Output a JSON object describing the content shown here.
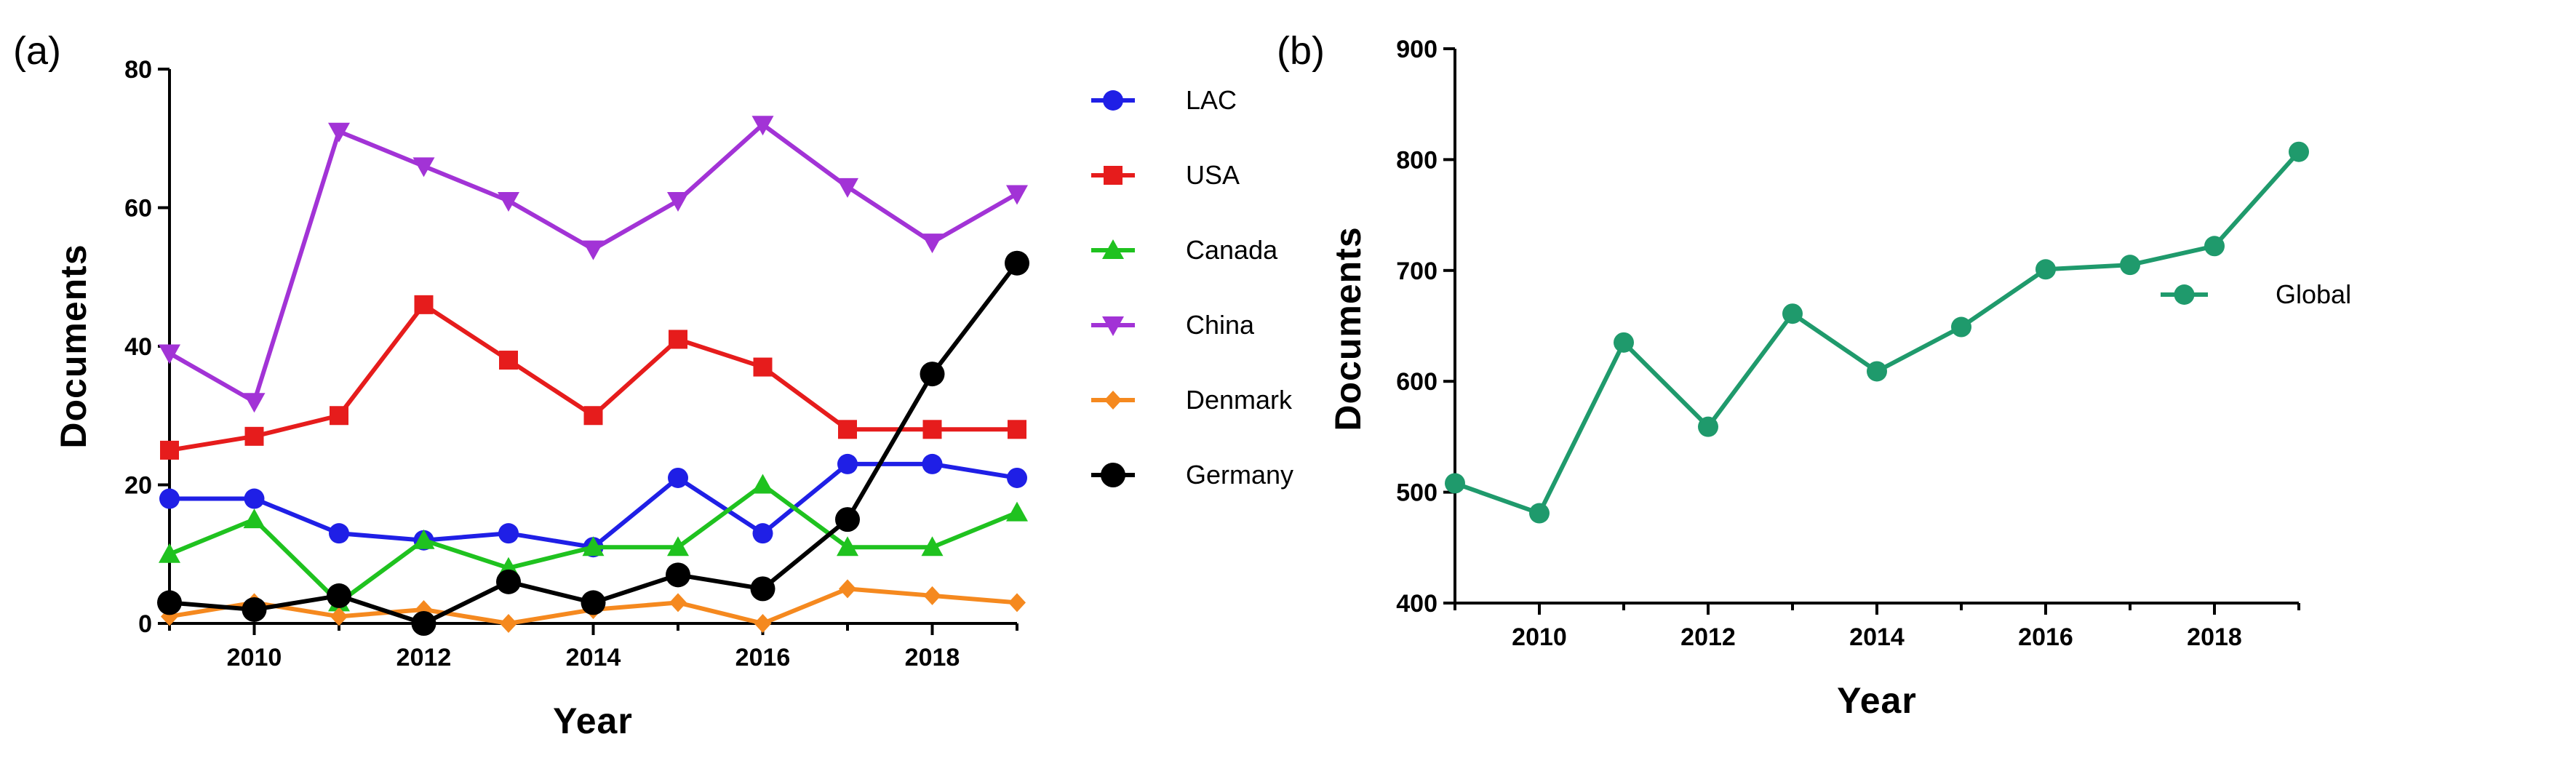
{
  "chart_data": [
    {
      "type": "line",
      "panel_label": "(a)",
      "title": "",
      "xlabel": "Year",
      "ylabel": "Documents",
      "xlim": [
        2009,
        2019
      ],
      "ylim": [
        0,
        80
      ],
      "xticks": [
        2010,
        2012,
        2014,
        2016,
        2018
      ],
      "yticks": [
        0,
        20,
        40,
        60,
        80
      ],
      "grid": false,
      "legend_position": "right",
      "x": [
        2009,
        2010,
        2011,
        2012,
        2013,
        2014,
        2015,
        2016,
        2017,
        2018,
        2019
      ],
      "series": [
        {
          "name": "LAC",
          "color": "#1f1fe6",
          "marker": "circle",
          "values": [
            18,
            18,
            13,
            12,
            13,
            11,
            21,
            13,
            23,
            23,
            21
          ]
        },
        {
          "name": "USA",
          "color": "#e61c1c",
          "marker": "square",
          "values": [
            25,
            27,
            30,
            46,
            38,
            30,
            41,
            37,
            28,
            28,
            28
          ]
        },
        {
          "name": "Canada",
          "color": "#1fc21f",
          "marker": "triangle-up",
          "values": [
            10,
            15,
            3,
            12,
            8,
            11,
            11,
            20,
            11,
            11,
            16
          ]
        },
        {
          "name": "China",
          "color": "#a233d6",
          "marker": "triangle-down",
          "values": [
            39,
            32,
            71,
            66,
            61,
            54,
            61,
            72,
            63,
            55,
            62
          ]
        },
        {
          "name": "Denmark",
          "color": "#f5891f",
          "marker": "diamond",
          "values": [
            1,
            3,
            1,
            2,
            0,
            2,
            3,
            0,
            5,
            4,
            3
          ]
        },
        {
          "name": "Germany",
          "color": "#000000",
          "marker": "circle-large",
          "values": [
            3,
            2,
            4,
            0,
            6,
            3,
            7,
            5,
            15,
            36,
            52
          ]
        }
      ]
    },
    {
      "type": "line",
      "panel_label": "(b)",
      "title": "",
      "xlabel": "Year",
      "ylabel": "Documents",
      "xlim": [
        2009,
        2019
      ],
      "ylim": [
        400,
        900
      ],
      "xticks": [
        2010,
        2012,
        2014,
        2016,
        2018
      ],
      "yticks": [
        400,
        500,
        600,
        700,
        800,
        900
      ],
      "grid": false,
      "legend_position": "right",
      "x": [
        2009,
        2010,
        2011,
        2012,
        2013,
        2014,
        2015,
        2016,
        2017,
        2018,
        2019
      ],
      "series": [
        {
          "name": "Global",
          "color": "#1f9a6c",
          "marker": "circle",
          "values": [
            508,
            481,
            635,
            559,
            661,
            609,
            649,
            701,
            705,
            722,
            807
          ]
        }
      ]
    }
  ]
}
